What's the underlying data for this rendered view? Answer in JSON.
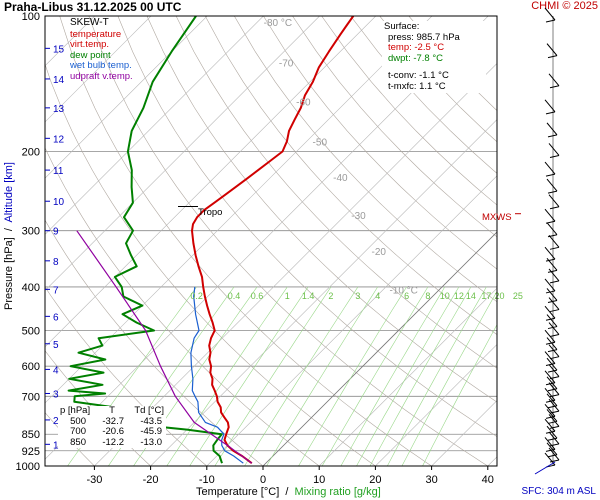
{
  "header": {
    "title": "Praha-Libus   31.12.2025 00 UTC",
    "copyright": "CHMI © 2025"
  },
  "legend": {
    "title": "SKEW-T",
    "items": [
      {
        "label": "temperature",
        "color": "#d00000"
      },
      {
        "label": "virt.temp.",
        "color": "#d00000"
      },
      {
        "label": "dew point",
        "color": "#008000"
      },
      {
        "label": "wet bulb temp.",
        "color": "#1a5fd0"
      },
      {
        "label": "udpraft v.temp.",
        "color": "#9000a0"
      }
    ]
  },
  "surface": {
    "title": "Surface:",
    "press": "press: 985.7 hPa",
    "temp": "temp: -2.5 °C",
    "dwpt": "dwpt: -7.8 °C",
    "tconv": "t-conv: -1.1 °C",
    "tmxfc": "t-mxfc: 1.1 °C"
  },
  "table": {
    "header": [
      "p [hPa]",
      "T",
      "Td [°C]"
    ],
    "rows": [
      [
        "500",
        "-32.7",
        "-43.5"
      ],
      [
        "700",
        "-20.6",
        "-45.9"
      ],
      [
        "850",
        "-12.2",
        "-13.0"
      ]
    ]
  },
  "annotations": {
    "tropo": "Tropo",
    "mxws": "MXWS"
  },
  "axes": {
    "y_title_pressure": "Pressure [hPa]",
    "y_title_sep": "  /  ",
    "y_title_alt": "Altitude [km]",
    "x_title_temp": "Temperature [°C]",
    "x_title_sep": "  /  ",
    "x_title_mix": "Mixing ratio [g/kg]",
    "sfc": "SFC: 304 m ASL"
  },
  "chart_data": {
    "type": "line",
    "title": "SKEW-T",
    "xlabel": "Temperature [°C]",
    "ylabel": "Pressure [hPa] / Altitude [km]",
    "xlim": [
      -40,
      40
    ],
    "ylim": [
      1000,
      100
    ],
    "pressure_ticks": [
      100,
      200,
      300,
      400,
      500,
      600,
      700,
      850,
      925,
      1000
    ],
    "pressure_tick_labels": [
      "100",
      "200",
      "300",
      "400",
      "500",
      "600",
      "700",
      "850",
      "925",
      "1000"
    ],
    "temperature_ticks": [
      -30,
      -20,
      -10,
      0,
      10,
      20,
      30,
      40
    ],
    "temperature_tick_labels": [
      "-30",
      "-20",
      "-10",
      "0",
      "10",
      "20",
      "30",
      "40"
    ],
    "altitude_km_ticks": [
      1,
      2,
      3,
      4,
      5,
      6,
      7,
      8,
      9,
      10,
      11,
      12,
      13,
      14,
      15
    ],
    "altitude_km_labels": [
      "1",
      "2",
      "3",
      "4",
      "5",
      "6",
      "7",
      "8",
      "9",
      "10",
      "11",
      "12",
      "13",
      "14",
      "15"
    ],
    "altitude_km_pressure": [
      895,
      790,
      690,
      610,
      535,
      465,
      405,
      350,
      300,
      258,
      220,
      187,
      160,
      138,
      118
    ],
    "isotherm_labels": [
      "-80 °C",
      "-70",
      "-60",
      "-50",
      "-40",
      "-30",
      "-20",
      "-10 °C"
    ],
    "isotherm_label_values": [
      -80,
      -70,
      -60,
      -50,
      -40,
      -30,
      -20,
      -10
    ],
    "mixing_ratio_values": [
      0.2,
      0.4,
      0.6,
      1,
      1.4,
      2,
      3,
      4,
      6,
      8,
      10,
      12,
      14,
      17,
      20,
      25
    ],
    "mixing_ratio_labels": [
      "0.2",
      "0.4",
      "0.6",
      "1",
      "1.4",
      "2",
      "3",
      "4",
      "6",
      "8",
      "10",
      "12",
      "14",
      "17",
      "20",
      "25"
    ],
    "series": [
      {
        "name": "temperature",
        "color": "#d00000",
        "points": [
          [
            985.7,
            -2.5
          ],
          [
            950,
            -5.5
          ],
          [
            925,
            -8
          ],
          [
            900,
            -10
          ],
          [
            875,
            -11.5
          ],
          [
            850,
            -12.2
          ],
          [
            820,
            -13
          ],
          [
            800,
            -14
          ],
          [
            780,
            -15.5
          ],
          [
            760,
            -17
          ],
          [
            740,
            -18
          ],
          [
            720,
            -19.5
          ],
          [
            700,
            -20.6
          ],
          [
            680,
            -22
          ],
          [
            660,
            -23.5
          ],
          [
            640,
            -24.5
          ],
          [
            620,
            -26
          ],
          [
            600,
            -27
          ],
          [
            580,
            -28.5
          ],
          [
            560,
            -29.5
          ],
          [
            540,
            -31
          ],
          [
            520,
            -32
          ],
          [
            500,
            -32.7
          ],
          [
            480,
            -34.5
          ],
          [
            460,
            -36.5
          ],
          [
            440,
            -38.5
          ],
          [
            420,
            -40.5
          ],
          [
            400,
            -42.5
          ],
          [
            380,
            -44.5
          ],
          [
            360,
            -47
          ],
          [
            340,
            -49.5
          ],
          [
            320,
            -52
          ],
          [
            300,
            -54.5
          ],
          [
            290,
            -55.5
          ],
          [
            280,
            -56
          ],
          [
            270,
            -56
          ],
          [
            260,
            -55.5
          ],
          [
            250,
            -55
          ],
          [
            240,
            -54.5
          ],
          [
            230,
            -54
          ],
          [
            220,
            -53.5
          ],
          [
            210,
            -53
          ],
          [
            200,
            -52.5
          ],
          [
            190,
            -53.5
          ],
          [
            180,
            -55
          ],
          [
            170,
            -56
          ],
          [
            160,
            -57
          ],
          [
            150,
            -58.5
          ],
          [
            140,
            -59.5
          ],
          [
            130,
            -61
          ],
          [
            120,
            -62
          ],
          [
            110,
            -63
          ],
          [
            105,
            -63.5
          ],
          [
            100,
            -64
          ]
        ]
      },
      {
        "name": "dew point",
        "color": "#008000",
        "points": [
          [
            985.7,
            -7.8
          ],
          [
            950,
            -9.5
          ],
          [
            925,
            -11.5
          ],
          [
            900,
            -12.5
          ],
          [
            875,
            -12.8
          ],
          [
            850,
            -13
          ],
          [
            830,
            -20
          ],
          [
            800,
            -34
          ],
          [
            780,
            -34.5
          ],
          [
            760,
            -40
          ],
          [
            740,
            -37
          ],
          [
            720,
            -45
          ],
          [
            700,
            -45.9
          ],
          [
            690,
            -41
          ],
          [
            680,
            -48
          ],
          [
            660,
            -43
          ],
          [
            640,
            -50
          ],
          [
            620,
            -45
          ],
          [
            600,
            -52
          ],
          [
            580,
            -47
          ],
          [
            560,
            -53
          ],
          [
            540,
            -50
          ],
          [
            520,
            -52
          ],
          [
            500,
            -43.5
          ],
          [
            480,
            -48
          ],
          [
            460,
            -52
          ],
          [
            440,
            -50
          ],
          [
            420,
            -55
          ],
          [
            400,
            -57
          ],
          [
            380,
            -60
          ],
          [
            360,
            -58
          ],
          [
            340,
            -61
          ],
          [
            320,
            -64
          ],
          [
            300,
            -65
          ],
          [
            280,
            -69
          ],
          [
            260,
            -70
          ],
          [
            240,
            -73
          ],
          [
            220,
            -76
          ],
          [
            200,
            -80
          ],
          [
            180,
            -83
          ],
          [
            160,
            -85
          ],
          [
            140,
            -88
          ],
          [
            120,
            -90
          ],
          [
            100,
            -92
          ]
        ]
      },
      {
        "name": "wet bulb temp.",
        "color": "#1a5fd0",
        "points": [
          [
            985.7,
            -4
          ],
          [
            950,
            -7
          ],
          [
            925,
            -9.5
          ],
          [
            900,
            -11
          ],
          [
            875,
            -12
          ],
          [
            850,
            -12.6
          ],
          [
            820,
            -15
          ],
          [
            800,
            -18
          ],
          [
            760,
            -21
          ],
          [
            720,
            -23
          ],
          [
            700,
            -24.5
          ],
          [
            680,
            -26
          ],
          [
            640,
            -28
          ],
          [
            600,
            -30.5
          ],
          [
            560,
            -33
          ],
          [
            520,
            -35
          ],
          [
            500,
            -35.5
          ],
          [
            460,
            -39
          ],
          [
            420,
            -42.5
          ],
          [
            400,
            -44
          ]
        ]
      },
      {
        "name": "udpraft v.temp.",
        "color": "#9000a0",
        "points": [
          [
            985.7,
            -2.5
          ],
          [
            900,
            -10
          ],
          [
            800,
            -20
          ],
          [
            700,
            -28
          ],
          [
            600,
            -36
          ],
          [
            500,
            -45
          ],
          [
            400,
            -58
          ],
          [
            300,
            -75
          ]
        ]
      }
    ],
    "tropopause_hpa": 265,
    "mxws_hpa": 275,
    "wind_barbs_hpa": [
      100,
      120,
      140,
      160,
      180,
      200,
      220,
      240,
      260,
      280,
      300,
      320,
      340,
      360,
      380,
      400,
      420,
      440,
      460,
      480,
      500,
      520,
      540,
      560,
      580,
      600,
      620,
      640,
      660,
      680,
      700,
      720,
      740,
      760,
      780,
      800,
      820,
      850,
      875,
      900,
      925,
      950,
      975
    ]
  }
}
